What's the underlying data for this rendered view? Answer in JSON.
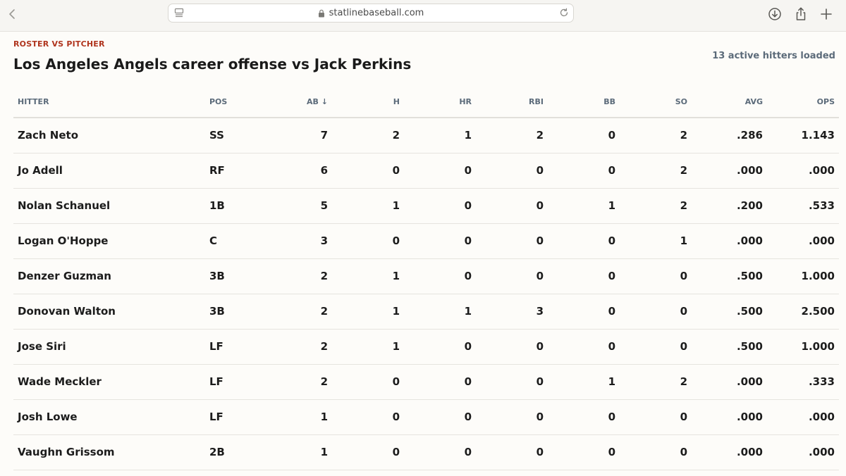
{
  "browser": {
    "url": "statlinebaseball.com"
  },
  "header": {
    "eyebrow": "ROSTER VS PITCHER",
    "title": "Los Angeles Angels career offense vs Jack Perkins",
    "status": "13 active hitters loaded"
  },
  "table": {
    "columns": {
      "hitter": "HITTER",
      "pos": "POS",
      "ab": "AB ↓",
      "h": "H",
      "hr": "HR",
      "rbi": "RBI",
      "bb": "BB",
      "so": "SO",
      "avg": "AVG",
      "ops": "OPS"
    },
    "rows": [
      {
        "name": "Zach Neto",
        "pos": "SS",
        "ab": "7",
        "h": "2",
        "hr": "1",
        "rbi": "2",
        "bb": "0",
        "so": "2",
        "avg": ".286",
        "ops": "1.143"
      },
      {
        "name": "Jo Adell",
        "pos": "RF",
        "ab": "6",
        "h": "0",
        "hr": "0",
        "rbi": "0",
        "bb": "0",
        "so": "2",
        "avg": ".000",
        "ops": ".000"
      },
      {
        "name": "Nolan Schanuel",
        "pos": "1B",
        "ab": "5",
        "h": "1",
        "hr": "0",
        "rbi": "0",
        "bb": "1",
        "so": "2",
        "avg": ".200",
        "ops": ".533"
      },
      {
        "name": "Logan O'Hoppe",
        "pos": "C",
        "ab": "3",
        "h": "0",
        "hr": "0",
        "rbi": "0",
        "bb": "0",
        "so": "1",
        "avg": ".000",
        "ops": ".000"
      },
      {
        "name": "Denzer Guzman",
        "pos": "3B",
        "ab": "2",
        "h": "1",
        "hr": "0",
        "rbi": "0",
        "bb": "0",
        "so": "0",
        "avg": ".500",
        "ops": "1.000"
      },
      {
        "name": "Donovan Walton",
        "pos": "3B",
        "ab": "2",
        "h": "1",
        "hr": "1",
        "rbi": "3",
        "bb": "0",
        "so": "0",
        "avg": ".500",
        "ops": "2.500"
      },
      {
        "name": "Jose Siri",
        "pos": "LF",
        "ab": "2",
        "h": "1",
        "hr": "0",
        "rbi": "0",
        "bb": "0",
        "so": "0",
        "avg": ".500",
        "ops": "1.000"
      },
      {
        "name": "Wade Meckler",
        "pos": "LF",
        "ab": "2",
        "h": "0",
        "hr": "0",
        "rbi": "0",
        "bb": "1",
        "so": "2",
        "avg": ".000",
        "ops": ".333"
      },
      {
        "name": "Josh Lowe",
        "pos": "LF",
        "ab": "1",
        "h": "0",
        "hr": "0",
        "rbi": "0",
        "bb": "0",
        "so": "0",
        "avg": ".000",
        "ops": ".000"
      },
      {
        "name": "Vaughn Grissom",
        "pos": "2B",
        "ab": "1",
        "h": "0",
        "hr": "0",
        "rbi": "0",
        "bb": "0",
        "so": "0",
        "avg": ".000",
        "ops": ".000"
      }
    ]
  },
  "icons": {
    "back": "chevron-left-icon",
    "reader": "reader-mode-icon",
    "lock": "lock-icon",
    "reload": "reload-icon",
    "download": "download-icon",
    "share": "share-icon",
    "new_tab": "plus-icon"
  },
  "colors": {
    "accent": "#b0351e",
    "muted": "#5c6b7a",
    "background": "#fdfcf9"
  }
}
